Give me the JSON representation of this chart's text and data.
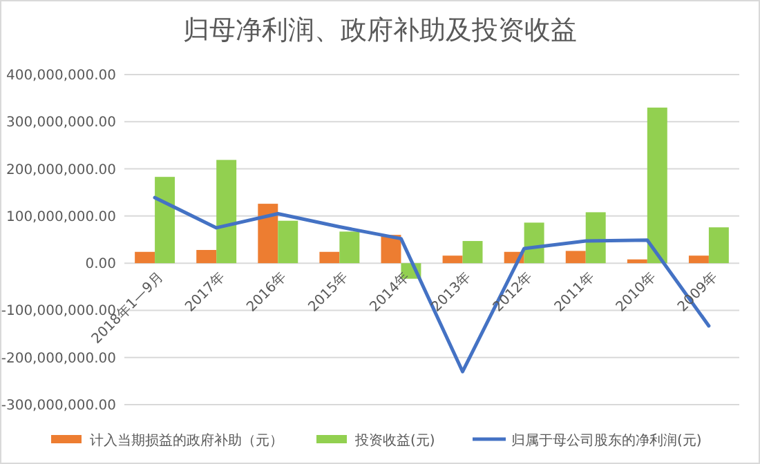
{
  "chart_data": {
    "type": "bar",
    "title": "归母净利润、政府补助及投资收益",
    "categories": [
      "2018年1—9月",
      "2017年",
      "2016年",
      "2015年",
      "2014年",
      "2013年",
      "2012年",
      "2011年",
      "2010年",
      "2009年"
    ],
    "series": [
      {
        "name": "计入当期损益的政府补助（元）",
        "color": "#ed7d31",
        "values": [
          24000000,
          28000000,
          126000000,
          24000000,
          60000000,
          16000000,
          24000000,
          26000000,
          8000000,
          16000000
        ]
      },
      {
        "name": "投资收益(元)",
        "color": "#92d050",
        "values": [
          183000000,
          219000000,
          90000000,
          67000000,
          -33000000,
          47000000,
          86000000,
          108000000,
          330000000,
          76000000
        ]
      },
      {
        "name": "归属于母公司股东的净利润(元)",
        "type": "line",
        "color": "#4472c4",
        "values": [
          139000000,
          75000000,
          105000000,
          77000000,
          52000000,
          -230000000,
          31000000,
          47000000,
          49000000,
          -133000000
        ]
      }
    ],
    "ylim": [
      -300000000,
      400000000
    ],
    "yticks": [
      {
        "value": -300000000,
        "label": "-300,000,000.00"
      },
      {
        "value": -200000000,
        "label": "-200,000,000.00"
      },
      {
        "value": -100000000,
        "label": "-100,000,000.00"
      },
      {
        "value": 0,
        "label": "0.00"
      },
      {
        "value": 100000000,
        "label": "100,000,000.00"
      },
      {
        "value": 200000000,
        "label": "200,000,000.00"
      },
      {
        "value": 300000000,
        "label": "300,000,000.00"
      },
      {
        "value": 400000000,
        "label": "400,000,000.00"
      }
    ],
    "grid": "y",
    "legend": "bottom",
    "marker": "none",
    "line_style": "solid"
  }
}
